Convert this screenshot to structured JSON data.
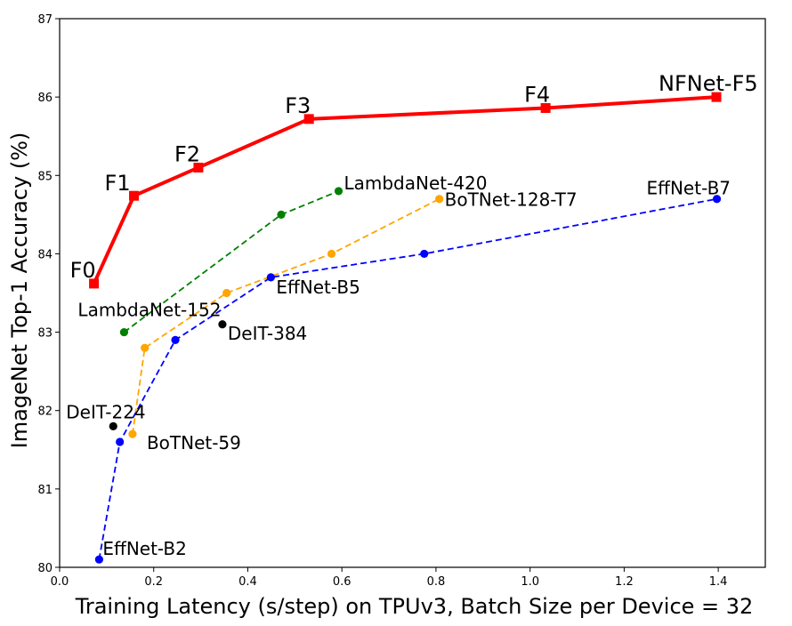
{
  "chart_data": {
    "type": "line",
    "xlabel": "Training Latency (s/step) on TPUv3, Batch Size per Device = 32",
    "ylabel": "ImageNet Top-1 Accuracy (%)",
    "xlim": [
      0.0,
      1.5
    ],
    "ylim": [
      80,
      87
    ],
    "xticks": [
      "0.0",
      "0.2",
      "0.4",
      "0.6",
      "0.8",
      "1.0",
      "1.2",
      "1.4"
    ],
    "yticks": [
      "80",
      "81",
      "82",
      "83",
      "84",
      "85",
      "86",
      "87"
    ],
    "grid": false,
    "series": [
      {
        "color": "#ff0000",
        "style": "solid",
        "marker": "square",
        "points": [
          {
            "x": 0.073,
            "y": 83.62,
            "label": "F0"
          },
          {
            "x": 0.158,
            "y": 84.74,
            "label": "F1"
          },
          {
            "x": 0.295,
            "y": 85.1,
            "label": "F2"
          },
          {
            "x": 0.53,
            "y": 85.72,
            "label": "F3"
          },
          {
            "x": 1.033,
            "y": 85.86,
            "label": "F4"
          },
          {
            "x": 1.396,
            "y": 86.0,
            "label": "NFNet-F5"
          }
        ]
      },
      {
        "color": "#008000",
        "style": "dashed",
        "marker": "circle",
        "points": [
          {
            "x": 0.137,
            "y": 83.0,
            "label": "LambdaNet-152"
          },
          {
            "x": 0.471,
            "y": 84.5,
            "label": ""
          },
          {
            "x": 0.593,
            "y": 84.8,
            "label": "LambdaNet-420"
          }
        ]
      },
      {
        "color": "#ffa500",
        "style": "dashed",
        "marker": "circle",
        "points": [
          {
            "x": 0.155,
            "y": 81.7,
            "label": "BoTNet-59"
          },
          {
            "x": 0.181,
            "y": 82.8,
            "label": ""
          },
          {
            "x": 0.355,
            "y": 83.5,
            "label": ""
          },
          {
            "x": 0.578,
            "y": 84.0,
            "label": ""
          },
          {
            "x": 0.807,
            "y": 84.7,
            "label": "BoTNet-128-T7"
          }
        ]
      },
      {
        "color": "#0000ff",
        "style": "dashed",
        "marker": "circle",
        "points": [
          {
            "x": 0.084,
            "y": 80.1,
            "label": "EffNet-B2"
          },
          {
            "x": 0.128,
            "y": 81.6,
            "label": ""
          },
          {
            "x": 0.246,
            "y": 82.9,
            "label": ""
          },
          {
            "x": 0.449,
            "y": 83.7,
            "label": "EffNet-B5"
          },
          {
            "x": 0.775,
            "y": 84.0,
            "label": ""
          },
          {
            "x": 1.397,
            "y": 84.7,
            "label": "EffNet-B7"
          }
        ]
      },
      {
        "color": "#000000",
        "style": "none",
        "marker": "circle",
        "points": [
          {
            "x": 0.114,
            "y": 81.8,
            "label": "DeIT-224"
          },
          {
            "x": 0.346,
            "y": 83.1,
            "label": "DeIT-384"
          }
        ]
      }
    ]
  }
}
